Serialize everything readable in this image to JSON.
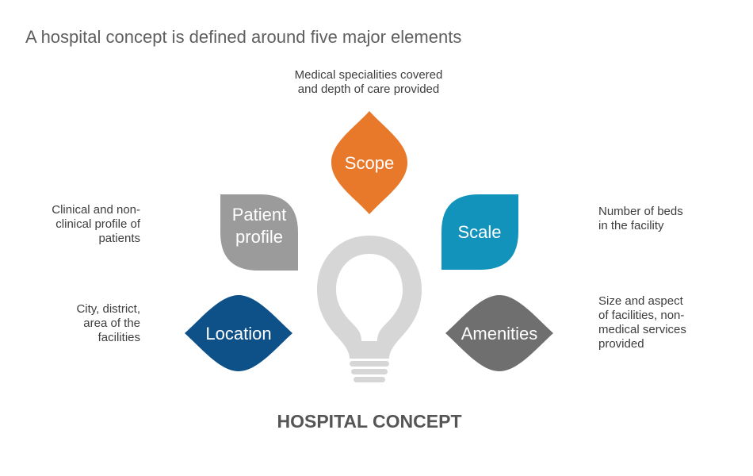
{
  "title": "A hospital concept is defined around five major elements",
  "center": {
    "label": "HOSPITAL CONCEPT",
    "icon": "lightbulb-icon"
  },
  "elements": {
    "scope": {
      "label": "Scope",
      "description": [
        "Medical specialities covered",
        "and depth of care provided"
      ],
      "color": "#E8792A"
    },
    "patient_profile": {
      "label": [
        "Patient",
        "profile"
      ],
      "description": [
        "Clinical and non-",
        "clinical profile of",
        "patients"
      ],
      "color": "#9B9B9B"
    },
    "scale": {
      "label": "Scale",
      "description": [
        "Number of beds",
        "in the facility"
      ],
      "color": "#1193BC"
    },
    "location": {
      "label": "Location",
      "description": [
        "City, district,",
        "area of the",
        "facilities"
      ],
      "color": "#0E5189"
    },
    "amenities": {
      "label": "Amenities",
      "description": [
        "Size and aspect",
        "of facilities, non-",
        "medical services",
        "provided"
      ],
      "color": "#6F6F6F"
    }
  },
  "bulb_color": "#D6D6D6"
}
